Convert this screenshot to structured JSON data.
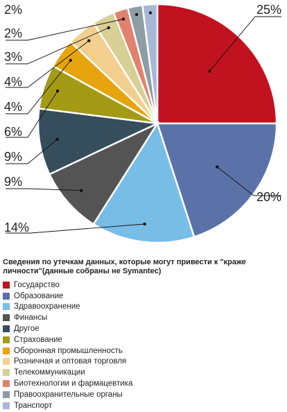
{
  "chart_data": {
    "type": "pie",
    "title": "Сведения по утечкам данных, которые могут привести к \"краже личности\"(данные собраны не Symantec)",
    "slices": [
      {
        "label": "Государство",
        "value": 25,
        "value_label": "25%",
        "color": "#c1121f"
      },
      {
        "label": "Образование",
        "value": 20,
        "value_label": "20%",
        "color": "#5a72a8"
      },
      {
        "label": "Здравоохранение",
        "value": 14,
        "value_label": "14%",
        "color": "#78bde6"
      },
      {
        "label": "Финансы",
        "value": 9,
        "value_label": "9%",
        "color": "#545454"
      },
      {
        "label": "Другое",
        "value": 9,
        "value_label": "9%",
        "color": "#364d5c"
      },
      {
        "label": "Страхование",
        "value": 6,
        "value_label": "6%",
        "color": "#a39b16"
      },
      {
        "label": "Оборонная промышленность",
        "value": 4,
        "value_label": "4%",
        "color": "#e6a40f"
      },
      {
        "label": "Розничная и оптовая торговля",
        "value": 4,
        "value_label": "4%",
        "color": "#f3cf8f"
      },
      {
        "label": "Телекоммуникации",
        "value": 3,
        "value_label": "3%",
        "color": "#d8cf94"
      },
      {
        "label": "Биотехнологии и фармацевтика",
        "value": 2,
        "value_label": "2%",
        "color": "#e0826e"
      },
      {
        "label": "Правоохранительные органы",
        "value": 2,
        "value_label": "2%",
        "color": "#8d9ea5"
      },
      {
        "label": "Транспорт",
        "value": 2,
        "value_label": "2%",
        "color": "#a8b6d8"
      }
    ],
    "legend_position": "bottom"
  }
}
